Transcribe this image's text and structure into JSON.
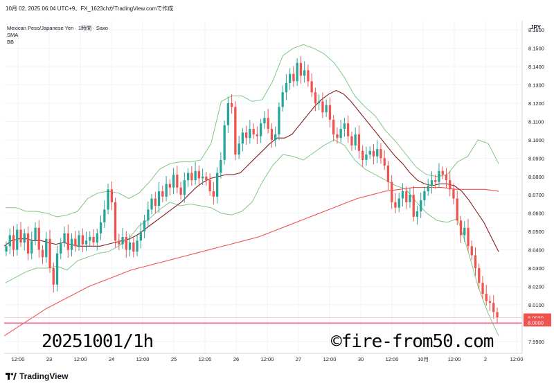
{
  "header": {
    "capture_line": "10月 02, 2025 06:04 UTC+9、FX_1623chがTradingView.comで作成"
  },
  "legend": {
    "symbol": "Mexican Peso/Japanese Yen · 1時間 · Saxo",
    "indicator1": "SMA",
    "indicator2": "BB"
  },
  "currency": "JPY",
  "watermark": {
    "date_label": "20251001/1h",
    "copyright": "©fire-from50.com"
  },
  "footer": {
    "brand": "TradingView"
  },
  "colors": {
    "up": "#26a69a",
    "down": "#ef5350",
    "band": "#81c784",
    "sma_short": "#8b1a1a",
    "sma_long": "#ef5350",
    "hline": "#f06292",
    "price_tag": "#ef5350"
  },
  "chart_data": {
    "type": "candlestick",
    "ylim": [
      7.985,
      8.165
    ],
    "y_ticks": [
      "8.1600",
      "8.1500",
      "8.1400",
      "8.1300",
      "8.1200",
      "8.1100",
      "8.1000",
      "8.0900",
      "8.0800",
      "8.0700",
      "8.0600",
      "8.0500",
      "8.0400",
      "8.0300",
      "8.0200",
      "8.0100",
      "7.9900"
    ],
    "x_ticks": [
      "12:00",
      "23",
      "12:00",
      "24",
      "12:00",
      "25",
      "12:00",
      "26",
      "12:00",
      "27",
      "12:00",
      "30",
      "12:00",
      "10月",
      "12:00",
      "2",
      "12:00"
    ],
    "price_labels": {
      "last": "8.0030",
      "level": "8.0000"
    },
    "horizontal_level": 8.0,
    "close_path": [
      8.042,
      8.048,
      8.04,
      8.051,
      8.044,
      8.049,
      8.038,
      8.045,
      8.052,
      8.04,
      8.036,
      8.046,
      8.03,
      8.021,
      8.038,
      8.044,
      8.049,
      8.04,
      8.046,
      8.042,
      8.048,
      8.043,
      8.045,
      8.047,
      8.044,
      8.049,
      8.055,
      8.062,
      8.073,
      8.066,
      8.045,
      8.043,
      8.047,
      8.04,
      8.044,
      8.039,
      8.045,
      8.05,
      8.056,
      8.062,
      8.068,
      8.064,
      8.072,
      8.069,
      8.076,
      8.074,
      8.081,
      8.074,
      8.07,
      8.078,
      8.082,
      8.078,
      8.083,
      8.079,
      8.08,
      8.078,
      8.072,
      8.069,
      8.082,
      8.089,
      8.108,
      8.12,
      8.118,
      8.092,
      8.098,
      8.104,
      8.101,
      8.106,
      8.103,
      8.102,
      8.109,
      8.112,
      8.106,
      8.1,
      8.103,
      8.118,
      8.126,
      8.131,
      8.136,
      8.132,
      8.142,
      8.135,
      8.138,
      8.132,
      8.126,
      8.12,
      8.121,
      8.115,
      8.119,
      8.111,
      8.103,
      8.101,
      8.106,
      8.109,
      8.102,
      8.097,
      8.103,
      8.094,
      8.089,
      8.092,
      8.094,
      8.091,
      8.095,
      8.09,
      8.086,
      8.077,
      8.066,
      8.063,
      8.068,
      8.072,
      8.066,
      8.07,
      8.058,
      8.061,
      8.067,
      8.072,
      8.075,
      8.078,
      8.077,
      8.083,
      8.081,
      8.078,
      8.073,
      8.068,
      8.056,
      8.048,
      8.052,
      8.042,
      8.037,
      8.03,
      8.022,
      8.016,
      8.012,
      8.011,
      8.006,
      8.003
    ],
    "sma_short": [
      8.042,
      8.045,
      8.046,
      8.046,
      8.045,
      8.045,
      8.044,
      8.043,
      8.044,
      8.043,
      8.042,
      8.042,
      8.042,
      8.042,
      8.043,
      8.044,
      8.045,
      8.046,
      8.048,
      8.051,
      8.054,
      8.057,
      8.06,
      8.063,
      8.066,
      8.07,
      8.074,
      8.077,
      8.079,
      8.08,
      8.081,
      8.081,
      8.082,
      8.086,
      8.09,
      8.094,
      8.098,
      8.101,
      8.101,
      8.103,
      8.108,
      8.113,
      8.118,
      8.122,
      8.125,
      8.127,
      8.125,
      8.121,
      8.116,
      8.111,
      8.106,
      8.101,
      8.096,
      8.091,
      8.087,
      8.082,
      8.078,
      8.076,
      8.075,
      8.076,
      8.076,
      8.075,
      8.072,
      8.067,
      8.061,
      8.055,
      8.047,
      8.039
    ],
    "sma_long": [
      7.993,
      7.998,
      8.003,
      8.008,
      8.012,
      8.016,
      8.02,
      8.023,
      8.026,
      8.029,
      8.031,
      8.033,
      8.035,
      8.037,
      8.039,
      8.041,
      8.043,
      8.045,
      8.047,
      8.05,
      8.053,
      8.056,
      8.059,
      8.062,
      8.065,
      8.068,
      8.07,
      8.072,
      8.073,
      8.074,
      8.074,
      8.074,
      8.073,
      8.073,
      8.073,
      8.072
    ],
    "bb_upper": [
      8.063,
      8.063,
      8.061,
      8.061,
      8.06,
      8.058,
      8.059,
      8.061,
      8.068,
      8.071,
      8.072,
      8.071,
      8.068,
      8.071,
      8.077,
      8.084,
      8.087,
      8.088,
      8.088,
      8.089,
      8.098,
      8.121,
      8.124,
      8.124,
      8.121,
      8.122,
      8.132,
      8.146,
      8.15,
      8.152,
      8.15,
      8.147,
      8.142,
      8.134,
      8.124,
      8.118,
      8.113,
      8.105,
      8.099,
      8.092,
      8.085,
      8.081,
      8.08,
      8.081,
      8.088,
      8.091,
      8.1,
      8.098,
      8.087
    ],
    "bb_lower": [
      8.022,
      8.025,
      8.028,
      8.03,
      8.03,
      8.031,
      8.029,
      8.034,
      8.036,
      8.038,
      8.039,
      8.042,
      8.046,
      8.053,
      8.057,
      8.062,
      8.066,
      8.064,
      8.065,
      8.064,
      8.063,
      8.06,
      8.059,
      8.061,
      8.066,
      8.077,
      8.086,
      8.092,
      8.091,
      8.089,
      8.093,
      8.097,
      8.1,
      8.097,
      8.089,
      8.084,
      8.081,
      8.078,
      8.075,
      8.073,
      8.066,
      8.06,
      8.056,
      8.055,
      8.057,
      8.04,
      8.02,
      8.005,
      7.993
    ]
  }
}
